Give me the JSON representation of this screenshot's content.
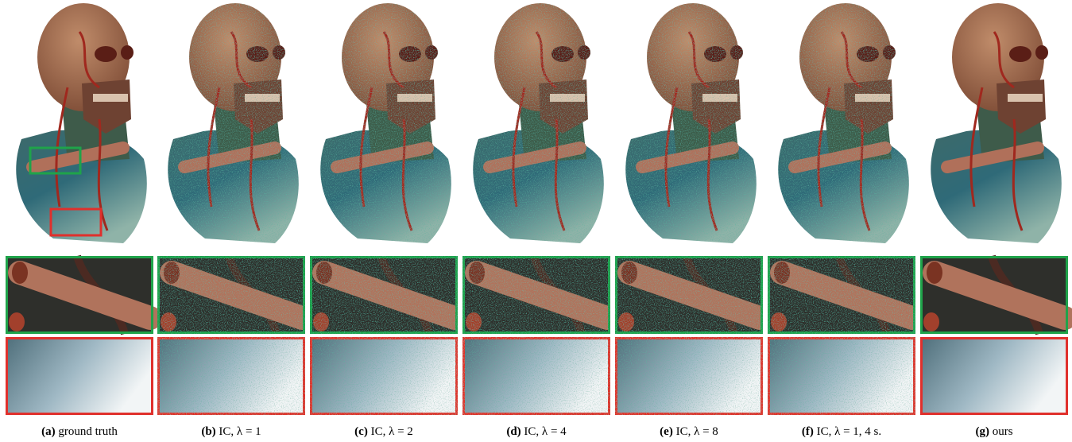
{
  "figure": {
    "captions": [
      {
        "label": "(a)",
        "text": "ground truth"
      },
      {
        "label": "(b)",
        "text": "IC, λ = 1"
      },
      {
        "label": "(c)",
        "text": "IC, λ = 2"
      },
      {
        "label": "(d)",
        "text": "IC, λ = 4"
      },
      {
        "label": "(e)",
        "text": "IC, λ = 8"
      },
      {
        "label": "(f)",
        "text": "IC, λ = 1, 4 s."
      },
      {
        "label": "(g)",
        "text": "ours"
      }
    ]
  }
}
